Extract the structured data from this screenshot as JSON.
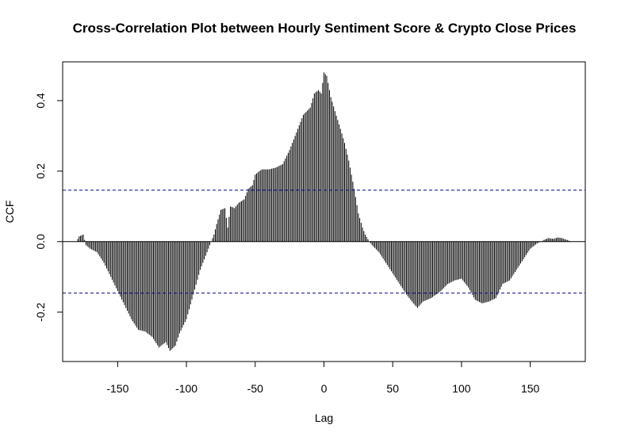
{
  "chart_data": {
    "type": "bar",
    "title": "Cross-Correlation Plot between Hourly Sentiment Score & Crypto Close Prices",
    "xlabel": "Lag",
    "ylabel": "CCF",
    "xlim": [
      -190,
      190
    ],
    "ylim": [
      -0.34,
      0.51
    ],
    "xticks": [
      -150,
      -100,
      -50,
      0,
      50,
      100,
      150
    ],
    "xtick_labels": [
      "-150",
      "-100",
      "-50",
      "0",
      "50",
      "100",
      "150"
    ],
    "yticks": [
      -0.2,
      0.0,
      0.2,
      0.4
    ],
    "ytick_labels": [
      "-0.2",
      "0.0",
      "0.2",
      "0.4"
    ],
    "confidence_bound": 0.146,
    "grid": false,
    "colors": {
      "bars": "#000000",
      "confidence": "#00008b",
      "zero_line": "#000000"
    },
    "lag_range": [
      -180,
      180
    ],
    "profile": [
      [
        -180,
        0.0
      ],
      [
        -178,
        0.015
      ],
      [
        -175,
        0.02
      ],
      [
        -173,
        -0.01
      ],
      [
        -170,
        -0.02
      ],
      [
        -165,
        -0.03
      ],
      [
        -160,
        -0.06
      ],
      [
        -155,
        -0.1
      ],
      [
        -150,
        -0.14
      ],
      [
        -145,
        -0.18
      ],
      [
        -140,
        -0.22
      ],
      [
        -135,
        -0.25
      ],
      [
        -130,
        -0.255
      ],
      [
        -125,
        -0.27
      ],
      [
        -120,
        -0.3
      ],
      [
        -115,
        -0.285
      ],
      [
        -112,
        -0.31
      ],
      [
        -108,
        -0.295
      ],
      [
        -105,
        -0.26
      ],
      [
        -100,
        -0.22
      ],
      [
        -95,
        -0.15
      ],
      [
        -90,
        -0.08
      ],
      [
        -85,
        -0.03
      ],
      [
        -82,
        0.0
      ],
      [
        -80,
        0.02
      ],
      [
        -78,
        0.05
      ],
      [
        -75,
        0.09
      ],
      [
        -72,
        0.095
      ],
      [
        -70,
        0.04
      ],
      [
        -68,
        0.1
      ],
      [
        -65,
        0.095
      ],
      [
        -62,
        0.11
      ],
      [
        -58,
        0.12
      ],
      [
        -55,
        0.15
      ],
      [
        -52,
        0.16
      ],
      [
        -50,
        0.19
      ],
      [
        -47,
        0.2
      ],
      [
        -45,
        0.205
      ],
      [
        -40,
        0.205
      ],
      [
        -35,
        0.21
      ],
      [
        -30,
        0.22
      ],
      [
        -25,
        0.26
      ],
      [
        -22,
        0.29
      ],
      [
        -18,
        0.33
      ],
      [
        -15,
        0.36
      ],
      [
        -10,
        0.38
      ],
      [
        -7,
        0.42
      ],
      [
        -4,
        0.43
      ],
      [
        -2,
        0.42
      ],
      [
        0,
        0.48
      ],
      [
        2,
        0.47
      ],
      [
        5,
        0.41
      ],
      [
        8,
        0.37
      ],
      [
        12,
        0.32
      ],
      [
        15,
        0.28
      ],
      [
        18,
        0.23
      ],
      [
        22,
        0.15
      ],
      [
        25,
        0.08
      ],
      [
        28,
        0.04
      ],
      [
        30,
        0.02
      ],
      [
        33,
        0.0
      ],
      [
        35,
        -0.01
      ],
      [
        40,
        -0.03
      ],
      [
        45,
        -0.06
      ],
      [
        50,
        -0.09
      ],
      [
        55,
        -0.12
      ],
      [
        60,
        -0.15
      ],
      [
        65,
        -0.175
      ],
      [
        68,
        -0.188
      ],
      [
        72,
        -0.17
      ],
      [
        78,
        -0.16
      ],
      [
        85,
        -0.14
      ],
      [
        90,
        -0.12
      ],
      [
        95,
        -0.11
      ],
      [
        100,
        -0.105
      ],
      [
        105,
        -0.13
      ],
      [
        110,
        -0.165
      ],
      [
        115,
        -0.175
      ],
      [
        120,
        -0.17
      ],
      [
        125,
        -0.16
      ],
      [
        130,
        -0.12
      ],
      [
        135,
        -0.11
      ],
      [
        140,
        -0.08
      ],
      [
        145,
        -0.05
      ],
      [
        150,
        -0.02
      ],
      [
        155,
        -0.005
      ],
      [
        158,
        0.0
      ],
      [
        160,
        0.005
      ],
      [
        163,
        0.01
      ],
      [
        167,
        0.008
      ],
      [
        170,
        0.012
      ],
      [
        173,
        0.01
      ],
      [
        176,
        0.006
      ],
      [
        180,
        0.0
      ]
    ]
  }
}
